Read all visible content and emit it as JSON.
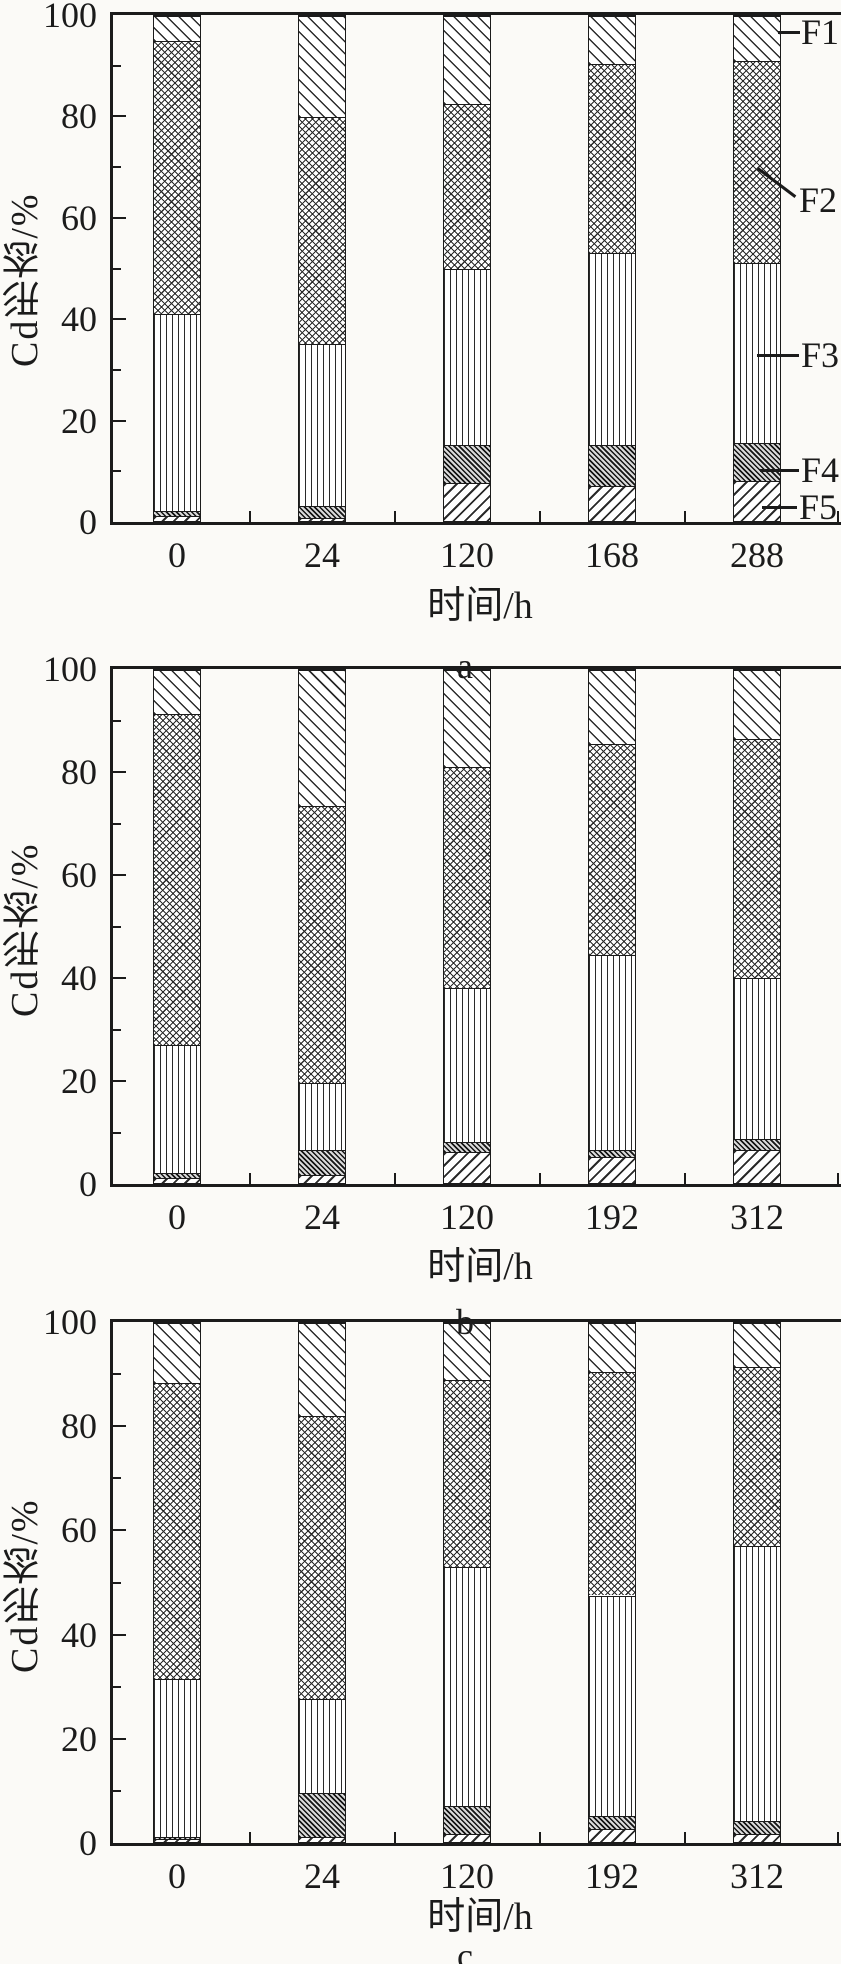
{
  "figure": {
    "background": "#fbfaf7",
    "ink": "#1b1b1b",
    "description": "Three vertically stacked 100% stacked-bar panels (a, b, c) showing Cd speciation fractions F1–F5 over time"
  },
  "legend": {
    "labels": [
      "F1",
      "F2",
      "F3",
      "F4",
      "F5"
    ],
    "position": "right edge of panel a, leader lines pointing to segments of the last bar"
  },
  "chart_data": [
    {
      "type": "bar",
      "subtype": "stacked-percent",
      "panel": "a",
      "xlabel": "时间/h",
      "ylabel": "Cd形态/%",
      "ylim": [
        0,
        100
      ],
      "yticks": [
        0,
        20,
        40,
        60,
        80,
        100
      ],
      "yticks_minor": [
        10,
        30,
        50,
        70,
        90
      ],
      "grid": false,
      "categories": [
        "0",
        "24",
        "120",
        "168",
        "288"
      ],
      "stack_order_bottom_to_top": [
        "F5",
        "F4",
        "F3",
        "F2",
        "F1"
      ],
      "series": [
        {
          "name": "F5",
          "values": [
            1.0,
            0.5,
            7.5,
            7.0,
            8.0
          ]
        },
        {
          "name": "F4",
          "values": [
            1.0,
            2.5,
            7.5,
            8.0,
            7.5
          ]
        },
        {
          "name": "F3",
          "values": [
            39.0,
            32.0,
            35.0,
            38.0,
            35.5
          ]
        },
        {
          "name": "F2",
          "values": [
            54.0,
            45.0,
            32.5,
            37.5,
            40.0
          ]
        },
        {
          "name": "F1",
          "values": [
            5.0,
            20.0,
            17.5,
            9.5,
            9.0
          ]
        }
      ]
    },
    {
      "type": "bar",
      "subtype": "stacked-percent",
      "panel": "b",
      "xlabel": "时间/h",
      "ylabel": "Cd形态/%",
      "ylim": [
        0,
        100
      ],
      "yticks": [
        0,
        20,
        40,
        60,
        80,
        100
      ],
      "yticks_minor": [
        10,
        30,
        50,
        70,
        90
      ],
      "grid": false,
      "categories": [
        "0",
        "24",
        "120",
        "192",
        "312"
      ],
      "stack_order_bottom_to_top": [
        "F5",
        "F4",
        "F3",
        "F2",
        "F1"
      ],
      "series": [
        {
          "name": "F5",
          "values": [
            1.0,
            1.5,
            6.0,
            5.0,
            6.5
          ]
        },
        {
          "name": "F4",
          "values": [
            1.0,
            5.0,
            2.0,
            1.5,
            2.0
          ]
        },
        {
          "name": "F3",
          "values": [
            25.0,
            13.0,
            30.0,
            38.0,
            31.5
          ]
        },
        {
          "name": "F2",
          "values": [
            64.5,
            54.0,
            43.0,
            41.0,
            46.5
          ]
        },
        {
          "name": "F1",
          "values": [
            8.5,
            26.5,
            19.0,
            14.5,
            13.5
          ]
        }
      ]
    },
    {
      "type": "bar",
      "subtype": "stacked-percent",
      "panel": "c",
      "xlabel": "时间/h",
      "ylabel": "Cd形态/%",
      "ylim": [
        0,
        100
      ],
      "yticks": [
        0,
        20,
        40,
        60,
        80,
        100
      ],
      "yticks_minor": [
        10,
        30,
        50,
        70,
        90
      ],
      "grid": false,
      "categories": [
        "0",
        "24",
        "120",
        "192",
        "312"
      ],
      "stack_order_bottom_to_top": [
        "F5",
        "F4",
        "F3",
        "F2",
        "F1"
      ],
      "series": [
        {
          "name": "F5",
          "values": [
            0.5,
            1.0,
            1.5,
            2.5,
            1.5
          ]
        },
        {
          "name": "F4",
          "values": [
            0.5,
            8.5,
            5.5,
            2.5,
            2.5
          ]
        },
        {
          "name": "F3",
          "values": [
            30.5,
            18.0,
            46.0,
            42.5,
            53.0
          ]
        },
        {
          "name": "F2",
          "values": [
            57.0,
            54.5,
            36.0,
            43.0,
            34.5
          ]
        },
        {
          "name": "F1",
          "values": [
            11.5,
            18.0,
            11.0,
            9.5,
            8.5
          ]
        }
      ]
    }
  ]
}
